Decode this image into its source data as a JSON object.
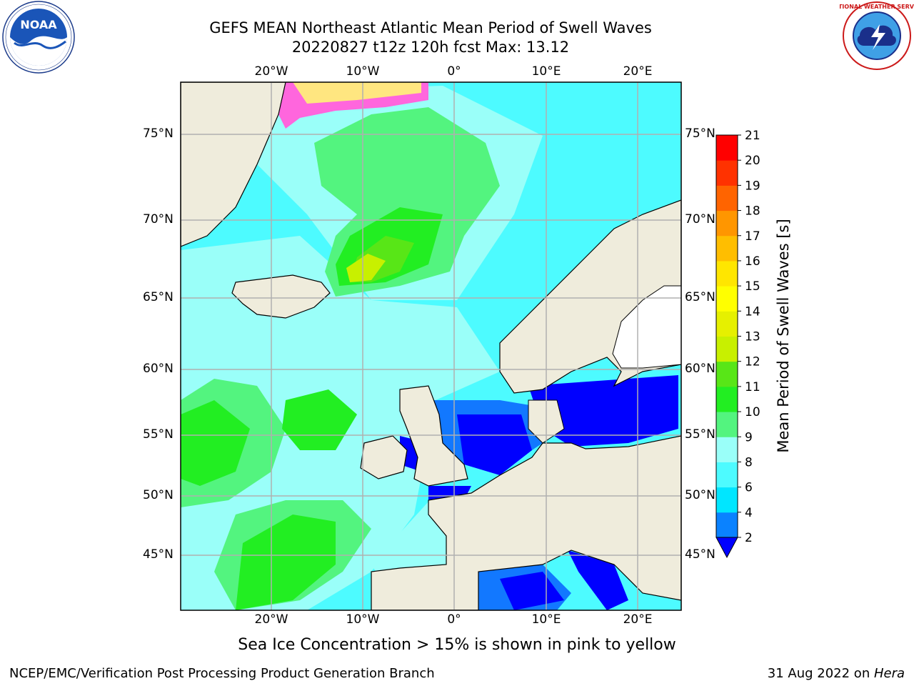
{
  "title": {
    "line1": "GEFS MEAN Northeast Atlantic Mean Period of Swell Waves",
    "line2": "20220827 t12z 120h fcst   Max: 13.12"
  },
  "logos": {
    "left": {
      "name": "noaa-logo",
      "text": "NOAA",
      "ring_text": "NATIONAL OCEANIC AND ATMOSPHERIC ADMINISTRATION · U.S. DEPARTMENT OF COMMERCE"
    },
    "right": {
      "name": "nws-logo",
      "ring_text": "NATIONAL WEATHER SERVICE"
    }
  },
  "map": {
    "longitude_labels": [
      "20°W",
      "10°W",
      "0°",
      "10°E",
      "20°E"
    ],
    "latitude_labels": [
      "75°N",
      "70°N",
      "65°N",
      "60°N",
      "55°N",
      "50°N",
      "45°N"
    ],
    "colors": {
      "ocean_light": "#9afff9",
      "ocean_cyan": "#4dfbff",
      "green_light": "#53f47f",
      "green": "#22ee22",
      "yellow_green": "#c8f000",
      "deep_blue": "#0000ff",
      "mid_blue": "#1278ff",
      "land": "#efecdc",
      "grid": "#b0b0b0"
    }
  },
  "colorbar": {
    "label": "Mean Period of Swell Waves [s]",
    "ticks": [
      "2",
      "4",
      "6",
      "8",
      "9",
      "10",
      "11",
      "12",
      "13",
      "14",
      "15",
      "16",
      "17",
      "18",
      "19",
      "20",
      "21"
    ],
    "colors": [
      "#0000ff",
      "#0a82ff",
      "#00e6ff",
      "#4dfbff",
      "#9afff9",
      "#53f47f",
      "#22ee22",
      "#58e617",
      "#c8f000",
      "#e6f000",
      "#ffff00",
      "#ffe600",
      "#ffbe00",
      "#ff9600",
      "#ff6400",
      "#ff3200",
      "#ff0000"
    ]
  },
  "caption": "Sea Ice Concentration > 15% is shown in pink to yellow",
  "footer": {
    "left": "NCEP/EMC/Verification Post Processing Product Generation Branch",
    "right_prefix": "31 Aug 2022 on ",
    "right_host": "Hera"
  }
}
